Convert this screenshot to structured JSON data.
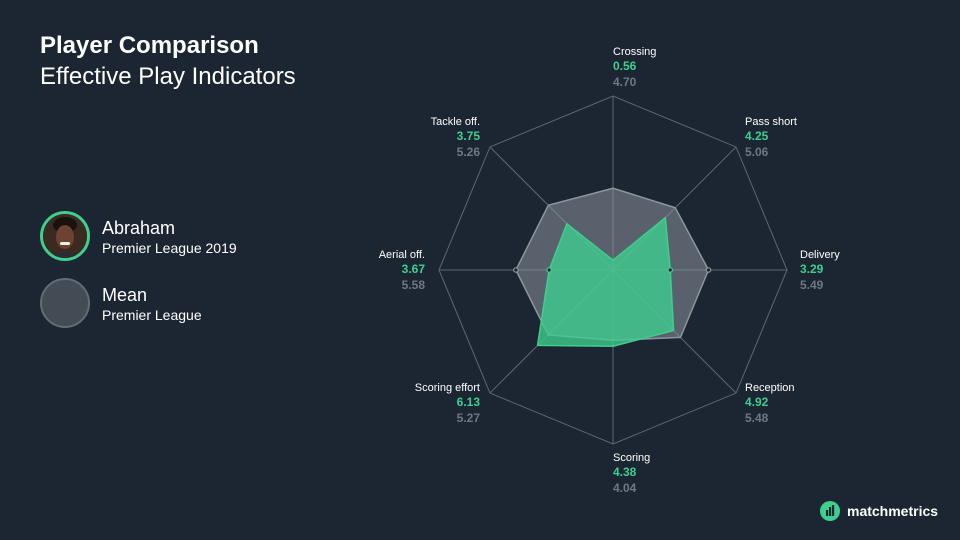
{
  "header": {
    "title": "Player Comparison",
    "subtitle": "Effective Play Indicators"
  },
  "legend": {
    "player": {
      "name": "Abraham",
      "competition": "Premier League 2019",
      "avatar_icon": "player-photo-icon"
    },
    "mean": {
      "name": "Mean",
      "competition": "Premier League"
    }
  },
  "colors": {
    "background": "#1c2632",
    "player": "#3ecf8e",
    "mean": "#6f7880",
    "grid": "#5d6872"
  },
  "chart_data": {
    "type": "radar",
    "title": "Effective Play Indicators",
    "scale_max": 10,
    "grid": true,
    "categories": [
      "Crossing",
      "Pass short",
      "Delivery",
      "Reception",
      "Scoring",
      "Scoring effort",
      "Aerial off.",
      "Tackle off."
    ],
    "series": [
      {
        "name": "Abraham",
        "values": [
          0.56,
          4.25,
          3.29,
          4.92,
          4.38,
          6.13,
          3.67,
          3.75
        ]
      },
      {
        "name": "Mean",
        "values": [
          4.7,
          5.06,
          5.49,
          5.48,
          4.04,
          5.27,
          5.58,
          5.26
        ]
      }
    ],
    "display_values": {
      "Abraham": [
        "0.56",
        "4.25",
        "3.29",
        "4.92",
        "4.38",
        "6.13",
        "3.67",
        "3.75"
      ],
      "Mean": [
        "4.70",
        "5.06",
        "5.49",
        "5.48",
        "4.04",
        "5.27",
        "5.58",
        "5.26"
      ]
    }
  },
  "brand": {
    "name": "matchmetrics",
    "icon": "matchmetrics-logo-icon"
  }
}
